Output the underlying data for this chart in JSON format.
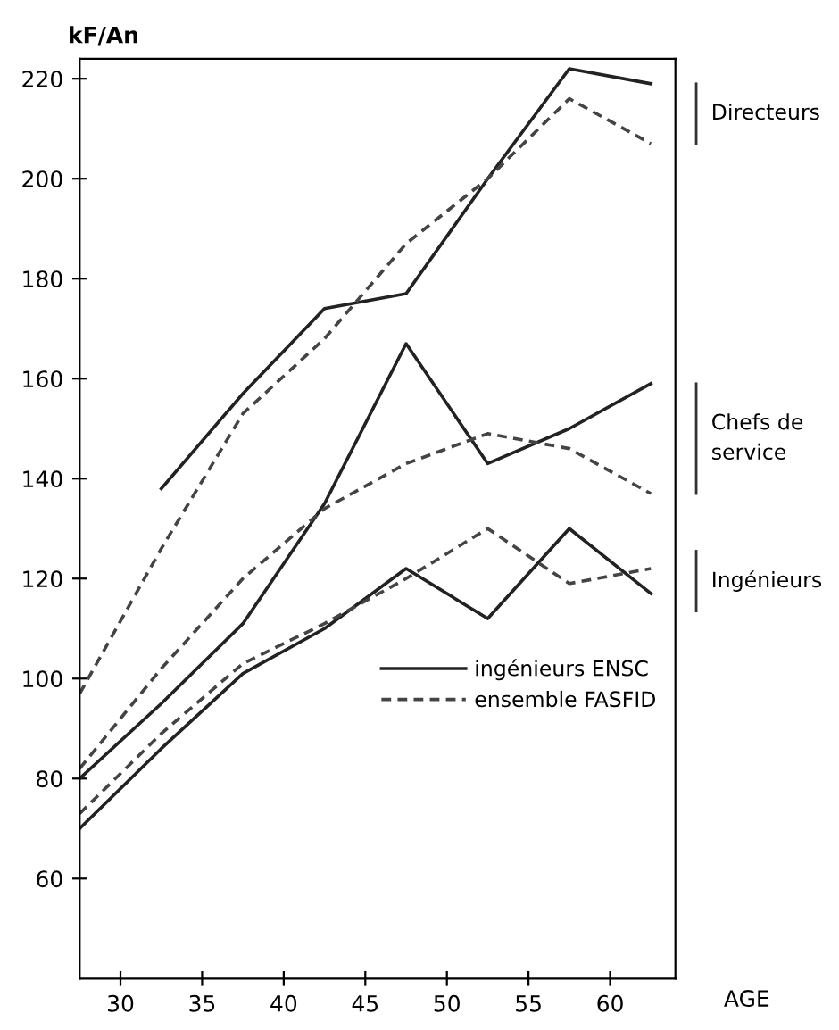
{
  "chart_data": {
    "type": "line",
    "ylabel": "kF/An",
    "xlabel": "AGE",
    "x": [
      27.5,
      32.5,
      37.5,
      42.5,
      47.5,
      52.5,
      57.5,
      62.5
    ],
    "series": [
      {
        "name": "ingénieurs ENSC",
        "color": "#222222",
        "line_style": "solid",
        "values": [
          null,
          138,
          157,
          174,
          177,
          200,
          222,
          219
        ]
      },
      {
        "name": "ensemble FASFID",
        "color": "#444444",
        "line_style": "dashed",
        "values": [
          97,
          126,
          153,
          168,
          187,
          200,
          216,
          207
        ]
      },
      {
        "color": "#222222",
        "line_style": "solid",
        "values": [
          80,
          95,
          111,
          135,
          167,
          143,
          150,
          159
        ]
      },
      {
        "color": "#444444",
        "line_style": "dashed",
        "values": [
          82,
          102,
          120,
          134,
          143,
          149,
          146,
          137
        ]
      },
      {
        "color": "#222222",
        "line_style": "solid",
        "values": [
          70,
          86,
          101,
          110,
          122,
          112,
          130,
          117
        ]
      },
      {
        "color": "#444444",
        "line_style": "dashed",
        "values": [
          73,
          89,
          103,
          111,
          120,
          130,
          119,
          122
        ]
      }
    ],
    "annotations": [
      "Directeurs",
      "Chefs de\nservice",
      "Ingénieurs"
    ],
    "xlim": [
      27.5,
      64
    ],
    "ylim": [
      40,
      224
    ],
    "xticks": [
      30,
      35,
      40,
      45,
      50,
      55,
      60
    ],
    "yticks": [
      60,
      80,
      100,
      120,
      140,
      160,
      180,
      200,
      220
    ],
    "grid": false,
    "legend": "bottom right",
    "marker": "none"
  }
}
